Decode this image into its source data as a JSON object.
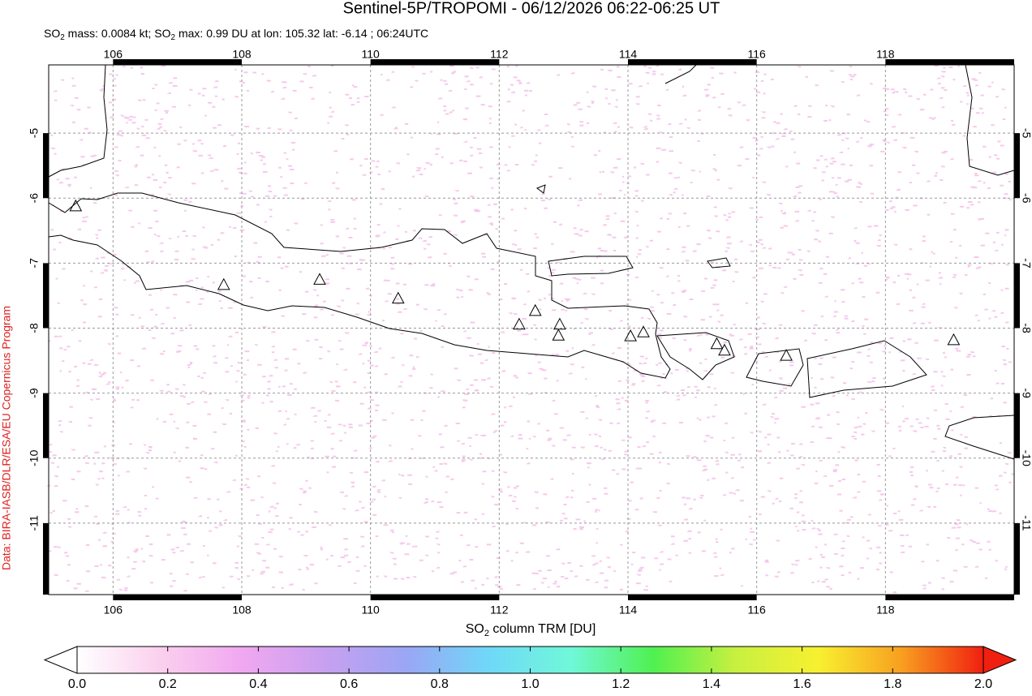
{
  "chart_data": {
    "type": "scatter",
    "marker": "triangle",
    "title": "Sentinel-5P/TROPOMI - 06/12/2026 06:22-06:25 UT",
    "subtitle": [
      "SO",
      "2",
      " mass: 0.0084 kt; SO",
      "2",
      " max: 0.99 DU at lon: 105.32 lat: -6.14 ; 06:24UTC"
    ],
    "credit": "Data: BIRA-IASB/DLR/ESA/EU Copernicus Program",
    "x": [
      105.42,
      107.72,
      109.21,
      110.43,
      112.31,
      112.56,
      112.94,
      112.92,
      114.04,
      114.24,
      115.38,
      115.5,
      116.46,
      119.06
    ],
    "values": [
      -6.12,
      -7.33,
      -7.25,
      -7.54,
      -7.94,
      -7.73,
      -7.94,
      -8.11,
      -8.12,
      -8.06,
      -8.24,
      -8.34,
      -8.42,
      -8.18
    ],
    "xlim": [
      105,
      120
    ],
    "ylim": [
      -12.1,
      -3.95
    ],
    "xticks": [
      106,
      108,
      110,
      112,
      114,
      116,
      118
    ],
    "yticks": [
      -5,
      -6,
      -7,
      -8,
      -9,
      -10,
      -11
    ],
    "grid": true,
    "colorbar": {
      "label": [
        "SO",
        "2",
        " column TRM [DU]"
      ],
      "lim": [
        0,
        2
      ],
      "ticks": [
        {
          "value": 0,
          "label": "0.0"
        },
        {
          "value": 0.2,
          "label": "0.2"
        },
        {
          "value": 0.4,
          "label": "0.4"
        },
        {
          "value": 0.6,
          "label": "0.6"
        },
        {
          "value": 0.8,
          "label": "0.8"
        },
        {
          "value": 1,
          "label": "1.0"
        },
        {
          "value": 1.2,
          "label": "1.2"
        },
        {
          "value": 1.4,
          "label": "1.4"
        },
        {
          "value": 1.6,
          "label": "1.6"
        },
        {
          "value": 1.8,
          "label": "1.8"
        },
        {
          "value": 2,
          "label": "2.0"
        }
      ],
      "colors": [
        "#ffffff",
        "#fbd0ee",
        "#f0a8f0",
        "#c8a0f0",
        "#9aa6f4",
        "#6fd8f8",
        "#70f8d8",
        "#50f050",
        "#c8f040",
        "#f8f030",
        "#f8a020",
        "#f02010"
      ]
    }
  }
}
